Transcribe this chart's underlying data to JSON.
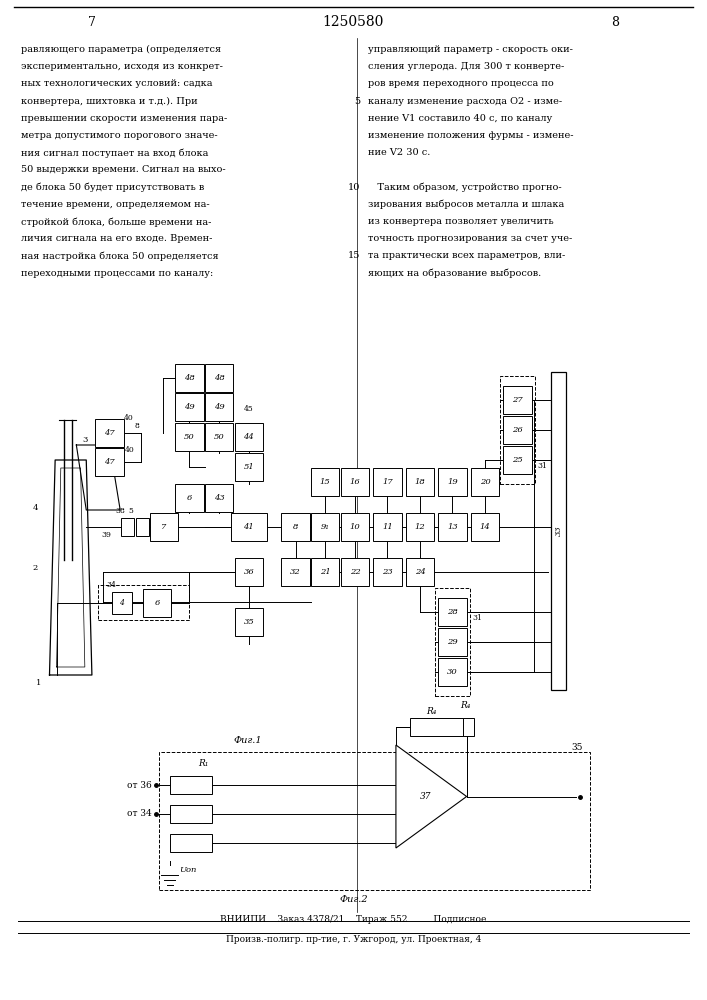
{
  "page_width": 7.07,
  "page_height": 10.0,
  "bg_color": "#ffffff",
  "header": {
    "left_num": "7",
    "center_num": "1250580",
    "right_num": "8"
  },
  "left_col_text": [
    "равляющего параметра (определяется",
    "экспериментально, исходя из конкрет-",
    "ных технологических условий: садка",
    "конвертера, шихтовка и т.д.). При",
    "превышении скорости изменения пара-",
    "метра допустимого порогового значе-",
    "ния сигнал поступает на вход блока",
    "50 выдержки времени. Сигнал на выхо-",
    "де блока 50 будет присутствовать в",
    "течение времени, определяемом на-",
    "стройкой блока, больше времени на-",
    "личия сигнала на его входе. Времен-",
    "ная настройка блока 50 определяется",
    "переходными процессами по каналу:"
  ],
  "right_col_text": [
    "управляющий параметр - скорость оки-",
    "сления углерода. Для 300 т конверте-",
    "ров время переходного процесса по",
    "каналу изменение расхода О2 - изме-",
    "нение V1 составило 40 с, по каналу",
    "изменение положения фурмы - измене-",
    "ние V2 30 с.",
    "",
    "   Таким образом, устройство прогно-",
    "зирования выбросов металла и шлака",
    "из конвертера позволяет увеличить",
    "точность прогнозирования за счет уче-",
    "та практически всех параметров, вли-",
    "яющих на образование выбросов."
  ],
  "line_num_positions": {
    "4": 0.805,
    "8": 0.664,
    "13": 0.488
  },
  "footer_line1": "ВНИИПИ    Заказ 4378/21    Тираж 552         Подписное",
  "footer_line2": "Произв.-полигр. пр-тие, г. Ужгород, ул. Проектная, 4"
}
